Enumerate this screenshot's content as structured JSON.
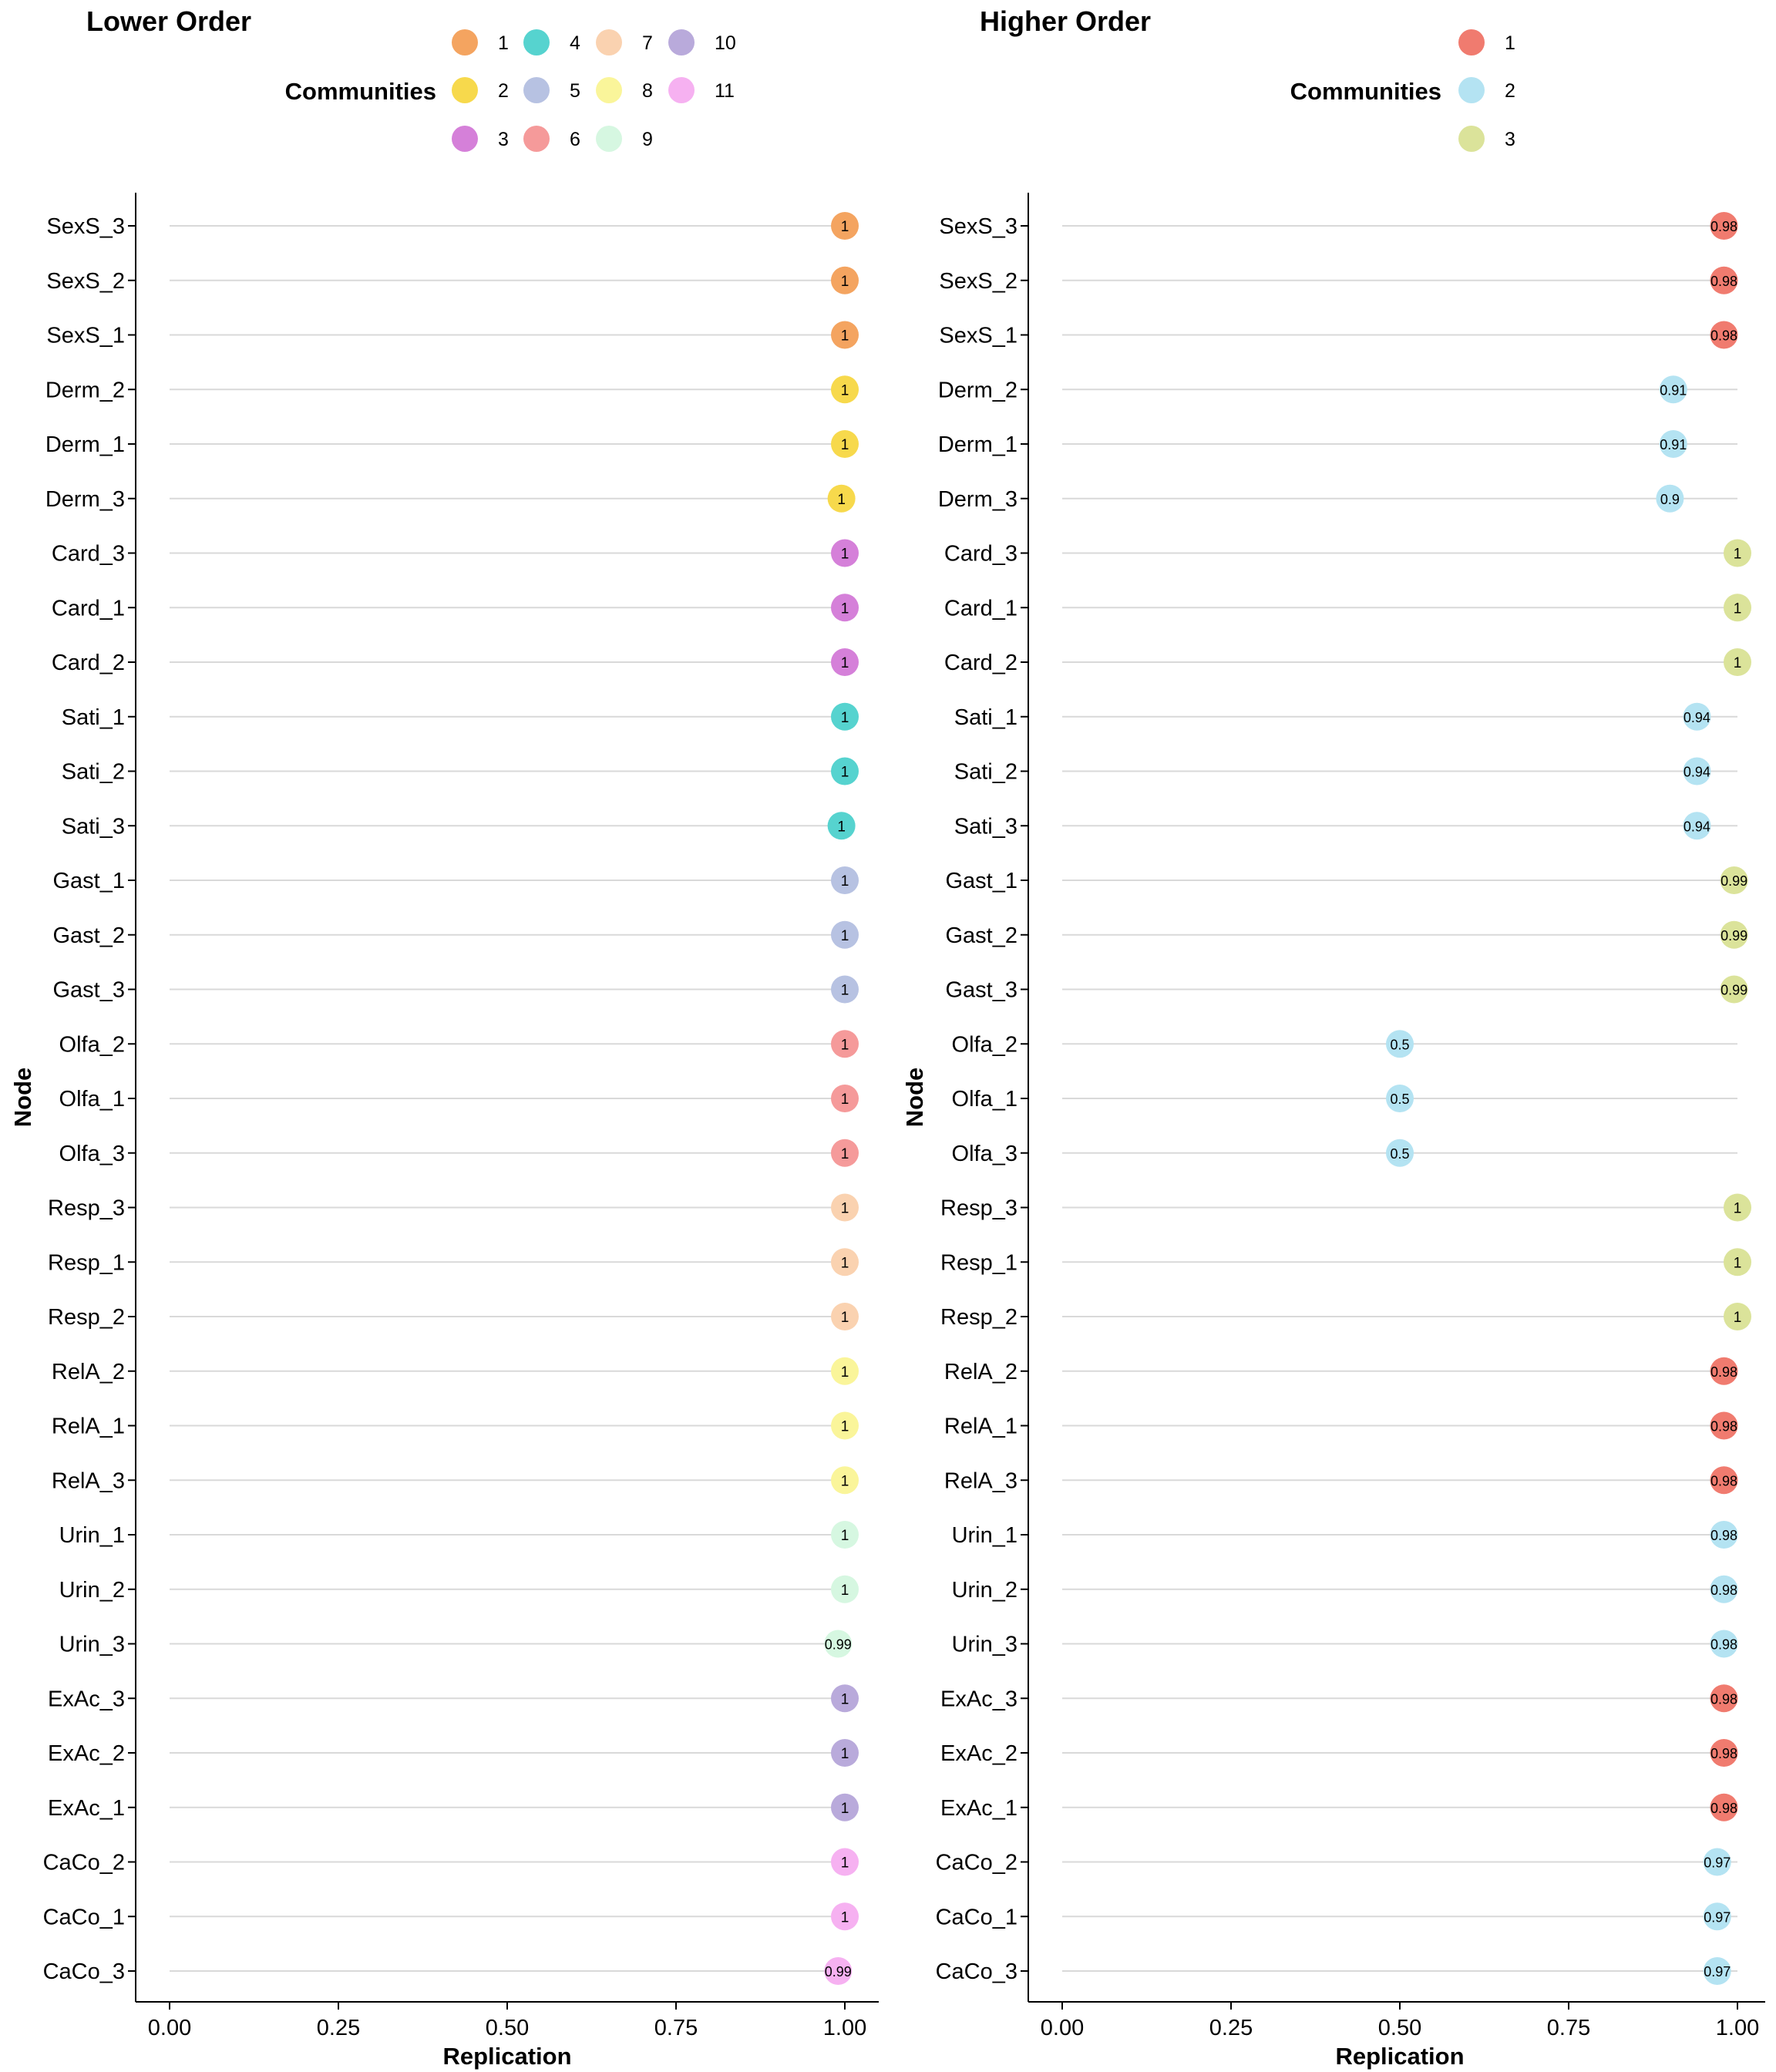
{
  "chart_data": [
    {
      "type": "dot",
      "title": "Lower Order",
      "xlabel": "Replication",
      "ylabel": "Node",
      "xlim": [
        0,
        1
      ],
      "xticks": [
        "0.00",
        "0.25",
        "0.50",
        "0.75",
        "1.00"
      ],
      "legend_title": "Communities",
      "legend": [
        {
          "label": "1",
          "color": "#F4A460"
        },
        {
          "label": "2",
          "color": "#F7D94C"
        },
        {
          "label": "3",
          "color": "#D580D9"
        },
        {
          "label": "4",
          "color": "#56D3CF"
        },
        {
          "label": "5",
          "color": "#B7C2E2"
        },
        {
          "label": "6",
          "color": "#F59A9A"
        },
        {
          "label": "7",
          "color": "#FAD2B0"
        },
        {
          "label": "8",
          "color": "#FAF59A"
        },
        {
          "label": "9",
          "color": "#D6F7E1"
        },
        {
          "label": "10",
          "color": "#B9AADB"
        },
        {
          "label": "11",
          "color": "#F6B1F1"
        }
      ],
      "points": [
        {
          "node": "SexS_3",
          "value": 1,
          "label": "1",
          "community": 0
        },
        {
          "node": "SexS_2",
          "value": 1,
          "label": "1",
          "community": 0
        },
        {
          "node": "SexS_1",
          "value": 1,
          "label": "1",
          "community": 0
        },
        {
          "node": "Derm_2",
          "value": 1,
          "label": "1",
          "community": 1
        },
        {
          "node": "Derm_1",
          "value": 1,
          "label": "1",
          "community": 1
        },
        {
          "node": "Derm_3",
          "value": 0.995,
          "label": "1",
          "community": 1
        },
        {
          "node": "Card_3",
          "value": 1,
          "label": "1",
          "community": 2
        },
        {
          "node": "Card_1",
          "value": 1,
          "label": "1",
          "community": 2
        },
        {
          "node": "Card_2",
          "value": 1,
          "label": "1",
          "community": 2
        },
        {
          "node": "Sati_1",
          "value": 1,
          "label": "1",
          "community": 3
        },
        {
          "node": "Sati_2",
          "value": 1,
          "label": "1",
          "community": 3
        },
        {
          "node": "Sati_3",
          "value": 0.995,
          "label": "1",
          "community": 3
        },
        {
          "node": "Gast_1",
          "value": 1,
          "label": "1",
          "community": 4
        },
        {
          "node": "Gast_2",
          "value": 1,
          "label": "1",
          "community": 4
        },
        {
          "node": "Gast_3",
          "value": 1,
          "label": "1",
          "community": 4
        },
        {
          "node": "Olfa_2",
          "value": 1,
          "label": "1",
          "community": 5
        },
        {
          "node": "Olfa_1",
          "value": 1,
          "label": "1",
          "community": 5
        },
        {
          "node": "Olfa_3",
          "value": 1,
          "label": "1",
          "community": 5
        },
        {
          "node": "Resp_3",
          "value": 1,
          "label": "1",
          "community": 6
        },
        {
          "node": "Resp_1",
          "value": 1,
          "label": "1",
          "community": 6
        },
        {
          "node": "Resp_2",
          "value": 1,
          "label": "1",
          "community": 6
        },
        {
          "node": "RelA_2",
          "value": 1,
          "label": "1",
          "community": 7
        },
        {
          "node": "RelA_1",
          "value": 1,
          "label": "1",
          "community": 7
        },
        {
          "node": "RelA_3",
          "value": 1,
          "label": "1",
          "community": 7
        },
        {
          "node": "Urin_1",
          "value": 1,
          "label": "1",
          "community": 8
        },
        {
          "node": "Urin_2",
          "value": 1,
          "label": "1",
          "community": 8
        },
        {
          "node": "Urin_3",
          "value": 0.99,
          "label": "0.99",
          "community": 8
        },
        {
          "node": "ExAc_3",
          "value": 1,
          "label": "1",
          "community": 9
        },
        {
          "node": "ExAc_2",
          "value": 1,
          "label": "1",
          "community": 9
        },
        {
          "node": "ExAc_1",
          "value": 1,
          "label": "1",
          "community": 9
        },
        {
          "node": "CaCo_2",
          "value": 1,
          "label": "1",
          "community": 10
        },
        {
          "node": "CaCo_1",
          "value": 1,
          "label": "1",
          "community": 10
        },
        {
          "node": "CaCo_3",
          "value": 0.99,
          "label": "0.99",
          "community": 10
        }
      ]
    },
    {
      "type": "dot",
      "title": "Higher Order",
      "xlabel": "Replication",
      "ylabel": "Node",
      "xlim": [
        0,
        1
      ],
      "xticks": [
        "0.00",
        "0.25",
        "0.50",
        "0.75",
        "1.00"
      ],
      "legend_title": "Communities",
      "legend": [
        {
          "label": "1",
          "color": "#F07B6F"
        },
        {
          "label": "2",
          "color": "#B4E3F2"
        },
        {
          "label": "3",
          "color": "#DBE39A"
        }
      ],
      "points": [
        {
          "node": "SexS_3",
          "value": 0.98,
          "label": "0.98",
          "community": 0
        },
        {
          "node": "SexS_2",
          "value": 0.98,
          "label": "0.98",
          "community": 0
        },
        {
          "node": "SexS_1",
          "value": 0.98,
          "label": "0.98",
          "community": 0
        },
        {
          "node": "Derm_2",
          "value": 0.905,
          "label": "0.91",
          "community": 1
        },
        {
          "node": "Derm_1",
          "value": 0.905,
          "label": "0.91",
          "community": 1
        },
        {
          "node": "Derm_3",
          "value": 0.9,
          "label": "0.9",
          "community": 1
        },
        {
          "node": "Card_3",
          "value": 1,
          "label": "1",
          "community": 2
        },
        {
          "node": "Card_1",
          "value": 1,
          "label": "1",
          "community": 2
        },
        {
          "node": "Card_2",
          "value": 1,
          "label": "1",
          "community": 2
        },
        {
          "node": "Sati_1",
          "value": 0.94,
          "label": "0.94",
          "community": 1
        },
        {
          "node": "Sati_2",
          "value": 0.94,
          "label": "0.94",
          "community": 1
        },
        {
          "node": "Sati_3",
          "value": 0.94,
          "label": "0.94",
          "community": 1
        },
        {
          "node": "Gast_1",
          "value": 0.995,
          "label": "0.99",
          "community": 2
        },
        {
          "node": "Gast_2",
          "value": 0.995,
          "label": "0.99",
          "community": 2
        },
        {
          "node": "Gast_3",
          "value": 0.995,
          "label": "0.99",
          "community": 2
        },
        {
          "node": "Olfa_2",
          "value": 0.5,
          "label": "0.5",
          "community": 1
        },
        {
          "node": "Olfa_1",
          "value": 0.5,
          "label": "0.5",
          "community": 1
        },
        {
          "node": "Olfa_3",
          "value": 0.5,
          "label": "0.5",
          "community": 1
        },
        {
          "node": "Resp_3",
          "value": 1,
          "label": "1",
          "community": 2
        },
        {
          "node": "Resp_1",
          "value": 1,
          "label": "1",
          "community": 2
        },
        {
          "node": "Resp_2",
          "value": 1,
          "label": "1",
          "community": 2
        },
        {
          "node": "RelA_2",
          "value": 0.98,
          "label": "0.98",
          "community": 0
        },
        {
          "node": "RelA_1",
          "value": 0.98,
          "label": "0.98",
          "community": 0
        },
        {
          "node": "RelA_3",
          "value": 0.98,
          "label": "0.98",
          "community": 0
        },
        {
          "node": "Urin_1",
          "value": 0.98,
          "label": "0.98",
          "community": 1
        },
        {
          "node": "Urin_2",
          "value": 0.98,
          "label": "0.98",
          "community": 1
        },
        {
          "node": "Urin_3",
          "value": 0.98,
          "label": "0.98",
          "community": 1
        },
        {
          "node": "ExAc_3",
          "value": 0.98,
          "label": "0.98",
          "community": 0
        },
        {
          "node": "ExAc_2",
          "value": 0.98,
          "label": "0.98",
          "community": 0
        },
        {
          "node": "ExAc_1",
          "value": 0.98,
          "label": "0.98",
          "community": 0
        },
        {
          "node": "CaCo_2",
          "value": 0.97,
          "label": "0.97",
          "community": 1
        },
        {
          "node": "CaCo_1",
          "value": 0.97,
          "label": "0.97",
          "community": 1
        },
        {
          "node": "CaCo_3",
          "value": 0.97,
          "label": "0.97",
          "community": 1
        }
      ]
    }
  ]
}
